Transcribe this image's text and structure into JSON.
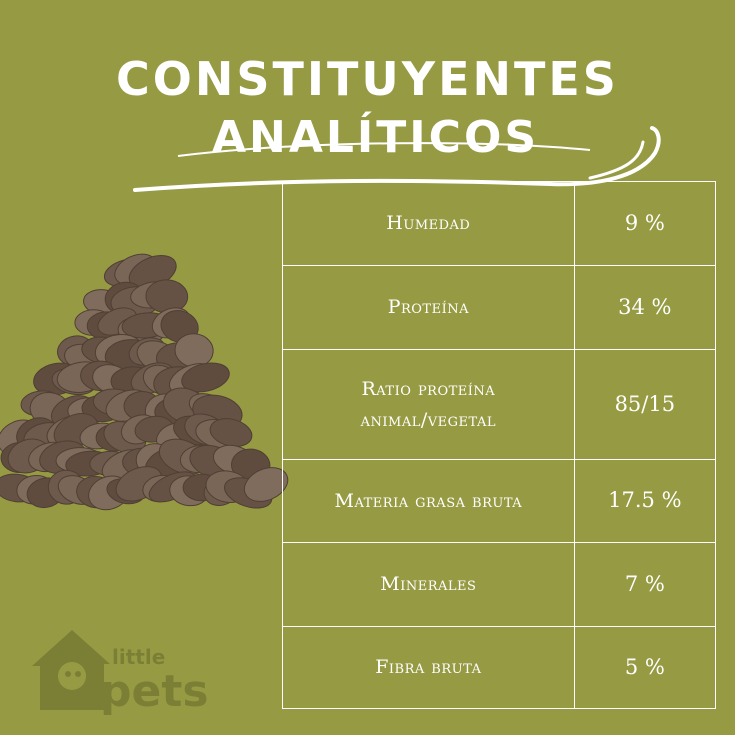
{
  "title": {
    "line1": "CONSTITUYENTES",
    "line2": "ANALÍTICOS"
  },
  "rows": [
    {
      "label": "Humedad",
      "value": "9 %"
    },
    {
      "label": "Proteína",
      "value": "34 %"
    },
    {
      "label": "Ratio proteína animal/vegetal",
      "value": "85/15"
    },
    {
      "label": "Materia grasa bruta",
      "value": "17.5 %"
    },
    {
      "label": "Minerales",
      "value": "7 %"
    },
    {
      "label": "Fibra bruta",
      "value": "5 %"
    }
  ],
  "logo": {
    "text_top": "little",
    "text_bottom": "pets"
  },
  "colors": {
    "background": "#969b43",
    "kibble": "#6e5a4c",
    "logo": "#7b7f35",
    "text": "#ffffff"
  }
}
